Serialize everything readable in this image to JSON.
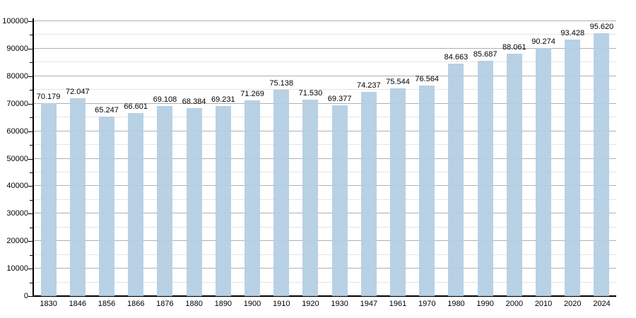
{
  "chart_data": {
    "type": "bar",
    "title": "",
    "xlabel": "",
    "ylabel": "",
    "categories": [
      "1830",
      "1846",
      "1856",
      "1866",
      "1876",
      "1880",
      "1890",
      "1900",
      "1910",
      "1920",
      "1930",
      "1947",
      "1961",
      "1970",
      "1980",
      "1990",
      "2000",
      "2010",
      "2020",
      "2024"
    ],
    "values": [
      70179,
      72047,
      65247,
      66601,
      69108,
      68384,
      69231,
      71269,
      75138,
      71530,
      69377,
      74237,
      75544,
      76564,
      84663,
      85687,
      88061,
      90274,
      93428,
      95620
    ],
    "value_labels": [
      "70.179",
      "72.047",
      "65.247",
      "66.601",
      "69.108",
      "68.384",
      "69.231",
      "71.269",
      "75.138",
      "71.530",
      "69.377",
      "74.237",
      "75.544",
      "76.564",
      "84.663",
      "85.687",
      "88.061",
      "90.274",
      "93.428",
      "95.620"
    ],
    "ylim": [
      0,
      100000
    ],
    "y_major_step": 10000,
    "y_minor_step": 5000,
    "y_tick_labels": [
      "0",
      "10000",
      "20000",
      "30000",
      "40000",
      "50000",
      "60000",
      "70000",
      "80000",
      "90000",
      "100000"
    ],
    "grid": "horizontal, major and minor, on",
    "legend": "none",
    "colors": {
      "bar": "#b3cde3",
      "major_grid": "#b0b0b0",
      "minor_grid": "#e4e4e4",
      "axis": "#000000",
      "text": "#000000",
      "background": "#ffffff"
    }
  }
}
